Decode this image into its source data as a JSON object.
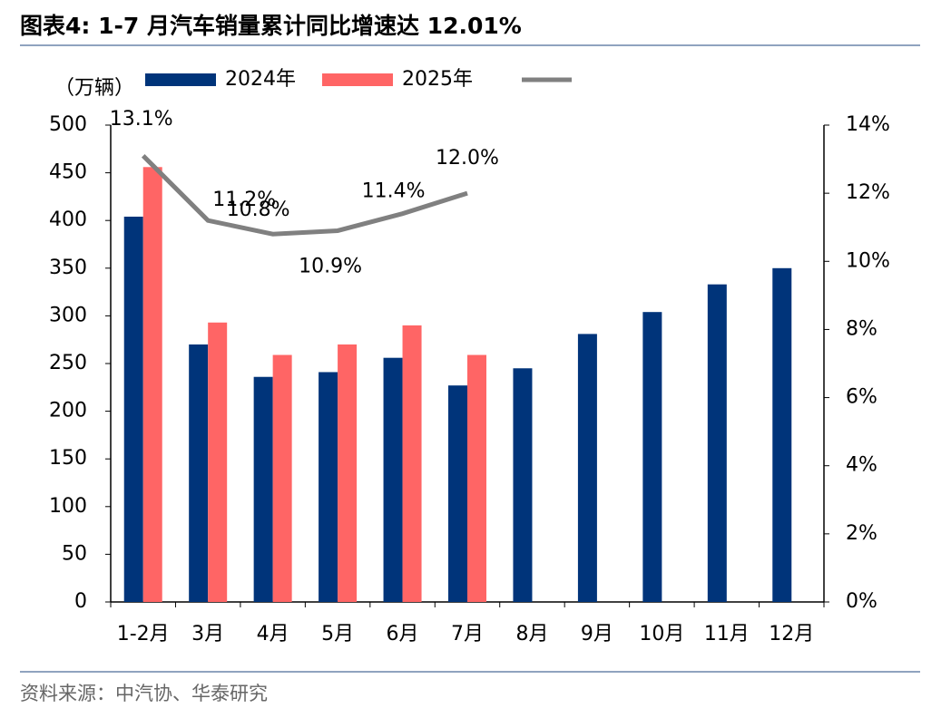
{
  "title": "图表4:  1-7 月汽车销量累计同比增速达 12.01%",
  "source": "资料来源：中汽协、华泰研究",
  "chart_data": {
    "type": "bar",
    "unit_label": "（万辆）",
    "categories": [
      "1-2月",
      "3月",
      "4月",
      "5月",
      "6月",
      "7月",
      "8月",
      "9月",
      "10月",
      "11月",
      "12月"
    ],
    "series": [
      {
        "name": "2024年",
        "color": "#00347a",
        "values": [
          404,
          270,
          236,
          241,
          256,
          227,
          245,
          281,
          304,
          333,
          350
        ]
      },
      {
        "name": "2025年",
        "color": "#ff6565",
        "values": [
          456,
          293,
          259,
          270,
          290,
          259,
          null,
          null,
          null,
          null,
          null
        ]
      },
      {
        "type": "line",
        "axis": "y2",
        "color": "#808080",
        "values": [
          13.1,
          11.2,
          10.8,
          10.9,
          11.4,
          12.0,
          null,
          null,
          null,
          null,
          null
        ],
        "value_labels": [
          "13.1%",
          "11.2%",
          "10.8%",
          "10.9%",
          "11.4%",
          "12.0%",
          null,
          null,
          null,
          null,
          null
        ]
      }
    ],
    "ylim": [
      0,
      500
    ],
    "yticks": [
      0,
      50,
      100,
      150,
      200,
      250,
      300,
      350,
      400,
      450,
      500
    ],
    "y2lim": [
      0,
      14
    ],
    "y2ticks": [
      {
        "value": 0,
        "label": "0%"
      },
      {
        "value": 2,
        "label": "2%"
      },
      {
        "value": 4,
        "label": "4%"
      },
      {
        "value": 6,
        "label": "6%"
      },
      {
        "value": 8,
        "label": "8%"
      },
      {
        "value": 10,
        "label": "10%"
      },
      {
        "value": 12,
        "label": "12%"
      },
      {
        "value": 14,
        "label": "14%"
      }
    ]
  }
}
